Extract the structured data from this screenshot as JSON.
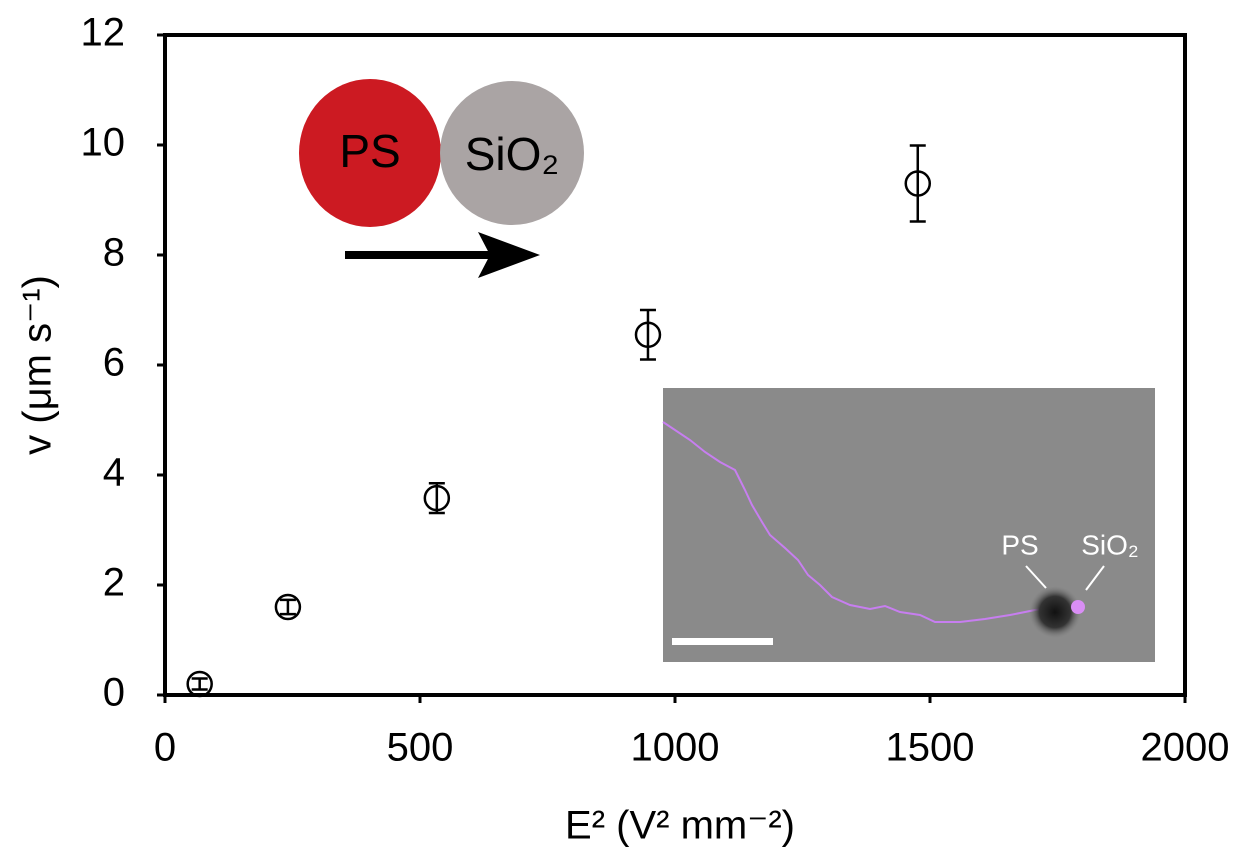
{
  "chart_data": {
    "type": "scatter",
    "xlabel": "E² (V² mm⁻²)",
    "ylabel": "v (μm s⁻¹)",
    "x": [
      68,
      241,
      533,
      947,
      1476
    ],
    "series": [
      {
        "values": [
          0.2,
          1.6,
          3.58,
          6.55,
          9.3
        ],
        "errors": [
          0.1,
          0.13,
          0.27,
          0.45,
          0.69
        ],
        "color": "#000000"
      }
    ],
    "xlim": [
      0,
      2000
    ],
    "xticks": [
      0,
      500,
      1000,
      1500,
      2000
    ],
    "ylim": [
      0,
      12
    ],
    "yticks": [
      0,
      2,
      4,
      6,
      8,
      10,
      12
    ],
    "grid": false,
    "annotations": {
      "schematic_left": "PS",
      "schematic_right": "SiO₂",
      "inset_left": "PS",
      "inset_right": "SiO₂"
    }
  }
}
